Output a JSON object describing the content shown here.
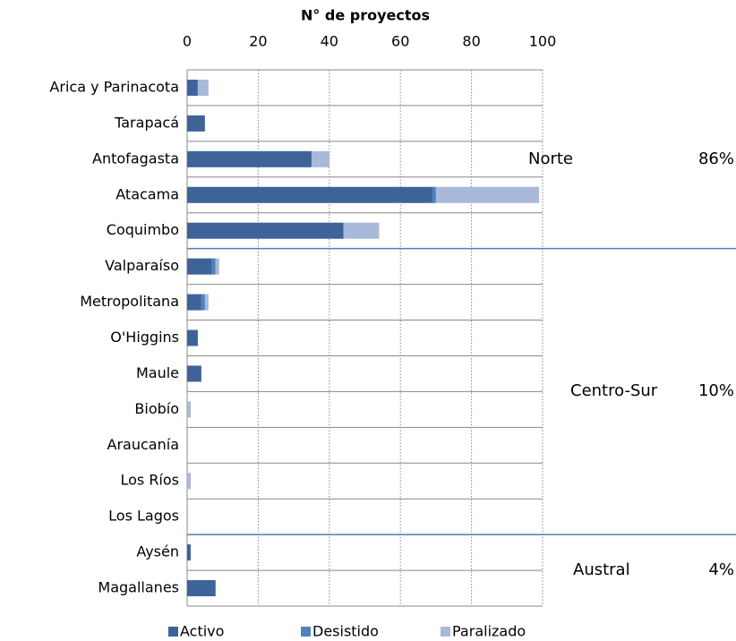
{
  "chart_data": {
    "type": "bar",
    "orientation": "horizontal",
    "stacked": true,
    "title": "N° de proyectos",
    "categories": [
      "Arica y Parinacota",
      "Tarapacá",
      "Antofagasta",
      "Atacama",
      "Coquimbo",
      "Valparaíso",
      "Metropolitana",
      "O'Higgins",
      "Maule",
      "Biobío",
      "Araucanía",
      "Los Ríos",
      "Los Lagos",
      "Aysén",
      "Magallanes"
    ],
    "series": [
      {
        "name": "Activo",
        "color": "#3d6399",
        "values": [
          3,
          5,
          35,
          69,
          44,
          7,
          4,
          3,
          4,
          0,
          0,
          0,
          0,
          1,
          8
        ]
      },
      {
        "name": "Desistido",
        "color": "#4f81bd",
        "values": [
          0,
          0,
          0,
          1,
          0,
          1,
          1,
          0,
          0,
          0,
          0,
          0,
          0,
          0,
          0
        ]
      },
      {
        "name": "Paralizado",
        "color": "#a9b9d9",
        "values": [
          3,
          0,
          5,
          29,
          10,
          1,
          1,
          0,
          0,
          1,
          0,
          1,
          0,
          0,
          0
        ]
      }
    ],
    "xlim": [
      0,
      100
    ],
    "xticks": [
      0,
      20,
      40,
      60,
      80,
      100
    ],
    "grid": true,
    "legend": "bottom",
    "zones": {
      "names": [
        "Norte",
        "Centro-Sur",
        "Austral"
      ],
      "values": [
        86,
        10,
        4
      ],
      "value_labels": [
        "86%",
        "10%",
        "4%"
      ]
    }
  }
}
